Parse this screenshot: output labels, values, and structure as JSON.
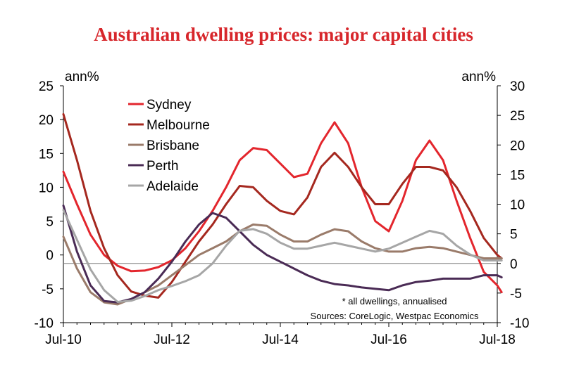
{
  "chart_data": {
    "type": "line",
    "title": "Australian dwelling prices: major capital cities",
    "left_unit": "ann%",
    "right_unit": "ann%",
    "ylim_left": [
      -10,
      25
    ],
    "ylim_right": [
      -10,
      30
    ],
    "left_ticks": [
      "25",
      "20",
      "15",
      "10",
      "5",
      "0",
      "-5",
      "-10"
    ],
    "right_ticks": [
      "30",
      "25",
      "20",
      "15",
      "10",
      "5",
      "0",
      "-5",
      "-10"
    ],
    "x_ticks": [
      "Jul-10",
      "Jul-12",
      "Jul-14",
      "Jul-16",
      "Jul-18"
    ],
    "x_range": [
      "2010-07",
      "2018-07"
    ],
    "note": "* all dwellings, annualised",
    "source": "Sources: CoreLogic, Westpac Economics",
    "series": [
      {
        "name": "Sydney",
        "color": "#e3262d",
        "axis": "left",
        "values": [
          [
            2010.5,
            12.3
          ],
          [
            2010.75,
            7.5
          ],
          [
            2011.0,
            3.0
          ],
          [
            2011.25,
            0.0
          ],
          [
            2011.5,
            -1.6
          ],
          [
            2011.75,
            -2.4
          ],
          [
            2012.0,
            -2.3
          ],
          [
            2012.25,
            -1.8
          ],
          [
            2012.5,
            -0.8
          ],
          [
            2012.75,
            1.0
          ],
          [
            2013.0,
            3.5
          ],
          [
            2013.25,
            6.5
          ],
          [
            2013.5,
            10.0
          ],
          [
            2013.75,
            14.0
          ],
          [
            2014.0,
            15.8
          ],
          [
            2014.25,
            15.5
          ],
          [
            2014.5,
            13.5
          ],
          [
            2014.75,
            11.5
          ],
          [
            2015.0,
            12.0
          ],
          [
            2015.25,
            16.5
          ],
          [
            2015.5,
            19.6
          ],
          [
            2015.75,
            16.5
          ],
          [
            2016.0,
            10.0
          ],
          [
            2016.25,
            5.0
          ],
          [
            2016.5,
            3.5
          ],
          [
            2016.75,
            8.0
          ],
          [
            2017.0,
            14.0
          ],
          [
            2017.25,
            16.9
          ],
          [
            2017.5,
            14.0
          ],
          [
            2017.75,
            8.0
          ],
          [
            2018.0,
            2.5
          ],
          [
            2018.25,
            -2.5
          ],
          [
            2018.5,
            -4.5
          ],
          [
            2018.58,
            -5.5
          ]
        ]
      },
      {
        "name": "Melbourne",
        "color": "#a5281f",
        "axis": "left",
        "values": [
          [
            2010.5,
            20.8
          ],
          [
            2010.75,
            14.0
          ],
          [
            2011.0,
            6.5
          ],
          [
            2011.25,
            1.0
          ],
          [
            2011.5,
            -3.0
          ],
          [
            2011.75,
            -5.4
          ],
          [
            2012.0,
            -6.0
          ],
          [
            2012.25,
            -6.3
          ],
          [
            2012.5,
            -4.0
          ],
          [
            2012.75,
            -1.0
          ],
          [
            2013.0,
            2.0
          ],
          [
            2013.25,
            4.5
          ],
          [
            2013.5,
            7.5
          ],
          [
            2013.75,
            10.2
          ],
          [
            2014.0,
            10.0
          ],
          [
            2014.25,
            8.0
          ],
          [
            2014.5,
            6.5
          ],
          [
            2014.75,
            6.0
          ],
          [
            2015.0,
            8.5
          ],
          [
            2015.25,
            13.0
          ],
          [
            2015.5,
            15.1
          ],
          [
            2015.75,
            13.0
          ],
          [
            2016.0,
            10.0
          ],
          [
            2016.25,
            7.5
          ],
          [
            2016.5,
            7.5
          ],
          [
            2016.75,
            10.5
          ],
          [
            2017.0,
            13.0
          ],
          [
            2017.25,
            13.0
          ],
          [
            2017.5,
            12.5
          ],
          [
            2017.75,
            10.0
          ],
          [
            2018.0,
            6.5
          ],
          [
            2018.25,
            2.5
          ],
          [
            2018.5,
            0.0
          ],
          [
            2018.58,
            -0.5
          ]
        ]
      },
      {
        "name": "Brisbane",
        "color": "#9a7b6a",
        "axis": "left",
        "values": [
          [
            2010.5,
            2.7
          ],
          [
            2010.75,
            -2.0
          ],
          [
            2011.0,
            -5.5
          ],
          [
            2011.25,
            -7.0
          ],
          [
            2011.5,
            -7.3
          ],
          [
            2011.75,
            -6.5
          ],
          [
            2012.0,
            -5.5
          ],
          [
            2012.25,
            -4.5
          ],
          [
            2012.5,
            -3.0
          ],
          [
            2012.75,
            -1.5
          ],
          [
            2013.0,
            0.0
          ],
          [
            2013.25,
            1.0
          ],
          [
            2013.5,
            2.0
          ],
          [
            2013.75,
            3.5
          ],
          [
            2014.0,
            4.5
          ],
          [
            2014.25,
            4.3
          ],
          [
            2014.5,
            3.0
          ],
          [
            2014.75,
            2.0
          ],
          [
            2015.0,
            2.0
          ],
          [
            2015.25,
            3.0
          ],
          [
            2015.5,
            3.8
          ],
          [
            2015.75,
            3.5
          ],
          [
            2016.0,
            2.0
          ],
          [
            2016.25,
            1.0
          ],
          [
            2016.5,
            0.5
          ],
          [
            2016.75,
            0.5
          ],
          [
            2017.0,
            1.0
          ],
          [
            2017.25,
            1.2
          ],
          [
            2017.5,
            1.0
          ],
          [
            2017.75,
            0.5
          ],
          [
            2018.0,
            0.0
          ],
          [
            2018.25,
            -0.5
          ],
          [
            2018.5,
            -0.5
          ],
          [
            2018.58,
            -0.5
          ]
        ]
      },
      {
        "name": "Perth",
        "color": "#4a2b55",
        "axis": "left",
        "values": [
          [
            2010.5,
            7.3
          ],
          [
            2010.75,
            0.5
          ],
          [
            2011.0,
            -4.5
          ],
          [
            2011.25,
            -6.8
          ],
          [
            2011.5,
            -7.0
          ],
          [
            2011.75,
            -6.5
          ],
          [
            2012.0,
            -5.5
          ],
          [
            2012.25,
            -3.5
          ],
          [
            2012.5,
            -1.0
          ],
          [
            2012.75,
            2.0
          ],
          [
            2013.0,
            4.5
          ],
          [
            2013.25,
            6.2
          ],
          [
            2013.5,
            5.5
          ],
          [
            2013.75,
            3.5
          ],
          [
            2014.0,
            1.5
          ],
          [
            2014.25,
            0.0
          ],
          [
            2014.5,
            -1.0
          ],
          [
            2014.75,
            -2.0
          ],
          [
            2015.0,
            -3.0
          ],
          [
            2015.25,
            -3.8
          ],
          [
            2015.5,
            -4.3
          ],
          [
            2015.75,
            -4.5
          ],
          [
            2016.0,
            -4.8
          ],
          [
            2016.25,
            -5.0
          ],
          [
            2016.5,
            -5.2
          ],
          [
            2016.75,
            -4.5
          ],
          [
            2017.0,
            -4.0
          ],
          [
            2017.25,
            -3.8
          ],
          [
            2017.5,
            -3.5
          ],
          [
            2017.75,
            -3.5
          ],
          [
            2018.0,
            -3.5
          ],
          [
            2018.25,
            -3.0
          ],
          [
            2018.5,
            -3.0
          ],
          [
            2018.58,
            -3.3
          ]
        ]
      },
      {
        "name": "Adelaide",
        "color": "#a6a6a6",
        "axis": "right",
        "values": [
          [
            2010.5,
            9.0
          ],
          [
            2010.75,
            4.0
          ],
          [
            2011.0,
            -1.0
          ],
          [
            2011.25,
            -4.5
          ],
          [
            2011.5,
            -6.5
          ],
          [
            2011.75,
            -6.3
          ],
          [
            2012.0,
            -5.5
          ],
          [
            2012.25,
            -4.5
          ],
          [
            2012.5,
            -3.8
          ],
          [
            2012.75,
            -3.0
          ],
          [
            2013.0,
            -2.0
          ],
          [
            2013.25,
            0.0
          ],
          [
            2013.5,
            3.0
          ],
          [
            2013.75,
            5.5
          ],
          [
            2014.0,
            5.8
          ],
          [
            2014.25,
            5.0
          ],
          [
            2014.5,
            3.5
          ],
          [
            2014.75,
            2.5
          ],
          [
            2015.0,
            2.5
          ],
          [
            2015.25,
            3.0
          ],
          [
            2015.5,
            3.5
          ],
          [
            2015.75,
            3.0
          ],
          [
            2016.0,
            2.5
          ],
          [
            2016.25,
            2.0
          ],
          [
            2016.5,
            2.5
          ],
          [
            2016.75,
            3.5
          ],
          [
            2017.0,
            4.5
          ],
          [
            2017.25,
            5.5
          ],
          [
            2017.5,
            5.0
          ],
          [
            2017.75,
            3.0
          ],
          [
            2018.0,
            1.5
          ],
          [
            2018.25,
            0.5
          ],
          [
            2018.5,
            0.5
          ],
          [
            2018.58,
            0.5
          ]
        ]
      }
    ]
  }
}
